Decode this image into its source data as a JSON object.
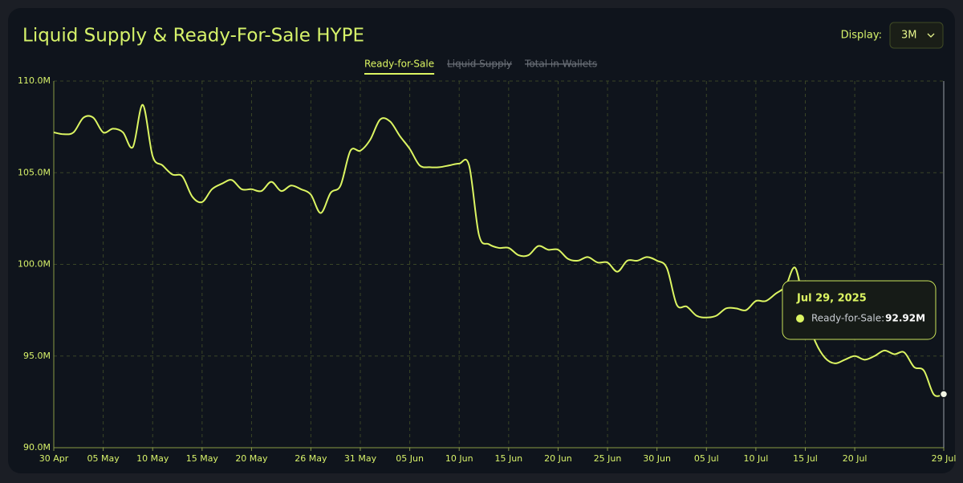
{
  "chart_data": {
    "type": "line",
    "title": "Liquid Supply & Ready-For-Sale HYPE",
    "controls": {
      "label": "Display:",
      "value": "3M"
    },
    "hidden_series": [
      "Liquid Supply",
      "Total in Wallets"
    ],
    "x": [
      "2025-04-30",
      "2025-05-01",
      "2025-05-02",
      "2025-05-03",
      "2025-05-04",
      "2025-05-05",
      "2025-05-06",
      "2025-05-07",
      "2025-05-08",
      "2025-05-09",
      "2025-05-10",
      "2025-05-11",
      "2025-05-12",
      "2025-05-13",
      "2025-05-14",
      "2025-05-15",
      "2025-05-16",
      "2025-05-17",
      "2025-05-18",
      "2025-05-19",
      "2025-05-20",
      "2025-05-21",
      "2025-05-22",
      "2025-05-23",
      "2025-05-24",
      "2025-05-25",
      "2025-05-26",
      "2025-05-27",
      "2025-05-28",
      "2025-05-29",
      "2025-05-30",
      "2025-05-31",
      "2025-06-01",
      "2025-06-02",
      "2025-06-03",
      "2025-06-04",
      "2025-06-05",
      "2025-06-06",
      "2025-06-07",
      "2025-06-08",
      "2025-06-09",
      "2025-06-10",
      "2025-06-11",
      "2025-06-12",
      "2025-06-13",
      "2025-06-14",
      "2025-06-15",
      "2025-06-16",
      "2025-06-17",
      "2025-06-18",
      "2025-06-19",
      "2025-06-20",
      "2025-06-21",
      "2025-06-22",
      "2025-06-23",
      "2025-06-24",
      "2025-06-25",
      "2025-06-26",
      "2025-06-27",
      "2025-06-28",
      "2025-06-29",
      "2025-06-30",
      "2025-07-01",
      "2025-07-02",
      "2025-07-03",
      "2025-07-04",
      "2025-07-05",
      "2025-07-06",
      "2025-07-07",
      "2025-07-08",
      "2025-07-09",
      "2025-07-10",
      "2025-07-11",
      "2025-07-12",
      "2025-07-13",
      "2025-07-14",
      "2025-07-15",
      "2025-07-16",
      "2025-07-17",
      "2025-07-18",
      "2025-07-19",
      "2025-07-20",
      "2025-07-21",
      "2025-07-22",
      "2025-07-23",
      "2025-07-24",
      "2025-07-25",
      "2025-07-26",
      "2025-07-27",
      "2025-07-28",
      "2025-07-29"
    ],
    "series": [
      {
        "name": "Ready-for-Sale",
        "color": "#dcf562",
        "values": [
          107.2,
          107.1,
          107.2,
          108.0,
          108.0,
          107.2,
          107.4,
          107.2,
          106.4,
          108.7,
          105.9,
          105.4,
          104.9,
          104.8,
          103.7,
          103.4,
          104.1,
          104.4,
          104.6,
          104.1,
          104.1,
          104.0,
          104.5,
          104.0,
          104.3,
          104.1,
          103.8,
          102.8,
          103.9,
          104.3,
          106.2,
          106.2,
          106.8,
          107.9,
          107.8,
          107.0,
          106.3,
          105.4,
          105.3,
          105.3,
          105.4,
          105.5,
          105.4,
          101.6,
          101.1,
          100.9,
          100.9,
          100.5,
          100.5,
          101.0,
          100.8,
          100.8,
          100.3,
          100.2,
          100.4,
          100.1,
          100.1,
          99.6,
          100.2,
          100.2,
          100.4,
          100.2,
          99.8,
          97.8,
          97.7,
          97.2,
          97.1,
          97.2,
          97.6,
          97.6,
          97.5,
          98.0,
          98.0,
          98.4,
          98.8,
          99.8,
          97.4,
          95.8,
          94.9,
          94.6,
          94.8,
          95.0,
          94.8,
          95.0,
          95.3,
          95.1,
          95.2,
          94.4,
          94.2,
          92.9,
          92.92
        ]
      }
    ],
    "xlim": [
      "2025-04-30",
      "2025-07-29"
    ],
    "xticks": [
      {
        "value": "2025-04-30",
        "label": "30 Apr"
      },
      {
        "value": "2025-05-05",
        "label": "05 May"
      },
      {
        "value": "2025-05-10",
        "label": "10 May"
      },
      {
        "value": "2025-05-15",
        "label": "15 May"
      },
      {
        "value": "2025-05-20",
        "label": "20 May"
      },
      {
        "value": "2025-05-26",
        "label": "26 May"
      },
      {
        "value": "2025-05-31",
        "label": "31 May"
      },
      {
        "value": "2025-06-05",
        "label": "05 Jun"
      },
      {
        "value": "2025-06-10",
        "label": "10 Jun"
      },
      {
        "value": "2025-06-15",
        "label": "15 Jun"
      },
      {
        "value": "2025-06-20",
        "label": "20 Jun"
      },
      {
        "value": "2025-06-25",
        "label": "25 Jun"
      },
      {
        "value": "2025-06-30",
        "label": "30 Jun"
      },
      {
        "value": "2025-07-05",
        "label": "05 Jul"
      },
      {
        "value": "2025-07-10",
        "label": "10 Jul"
      },
      {
        "value": "2025-07-15",
        "label": "15 Jul"
      },
      {
        "value": "2025-07-20",
        "label": "20 Jul"
      },
      {
        "value": "2025-07-29",
        "label": "29 Jul"
      }
    ],
    "ylim": [
      90,
      110
    ],
    "yticks": [
      {
        "value": 90,
        "label": "90.0M"
      },
      {
        "value": 95,
        "label": "95.0M"
      },
      {
        "value": 100,
        "label": "100.0M"
      },
      {
        "value": 105,
        "label": "105.0M"
      },
      {
        "value": 110,
        "label": "110.0M"
      }
    ],
    "grid": true,
    "tooltip": {
      "x": "2025-07-29",
      "x_label": "Jul 29, 2025",
      "label": "Ready-for-Sale:",
      "value": 92.92,
      "value_label": "92.92M"
    }
  }
}
